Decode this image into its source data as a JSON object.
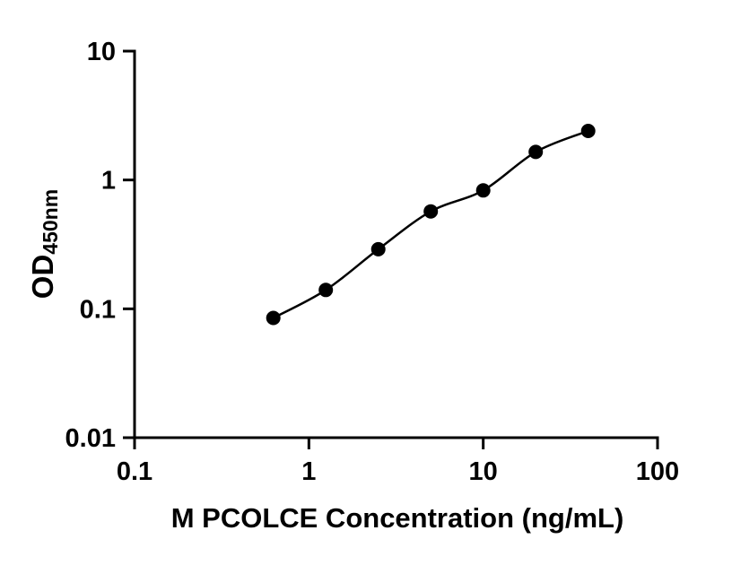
{
  "chart_data": {
    "type": "scatter",
    "x": [
      0.625,
      1.25,
      2.5,
      5,
      10,
      20,
      40
    ],
    "y": [
      0.085,
      0.14,
      0.29,
      0.57,
      0.83,
      1.65,
      2.4
    ],
    "title": "",
    "xlabel": "M PCOLCE Concentration (ng/mL)",
    "ylabel": "OD450nm",
    "ylabel_main": "OD",
    "ylabel_sub": "450nm",
    "xscale": "log",
    "yscale": "log",
    "xlim": [
      0.1,
      100
    ],
    "ylim": [
      0.01,
      10
    ],
    "x_ticks": [
      0.1,
      1,
      10,
      100
    ],
    "x_tick_labels": [
      "0.1",
      "1",
      "10",
      "100"
    ],
    "y_ticks": [
      0.01,
      0.1,
      1,
      10
    ],
    "y_tick_labels": [
      "0.01",
      "0.1",
      "1",
      "10"
    ],
    "grid": false,
    "legend": false,
    "has_fit_curve": true,
    "marker_color": "#000000",
    "line_color": "#000000",
    "background_color": "#ffffff"
  }
}
